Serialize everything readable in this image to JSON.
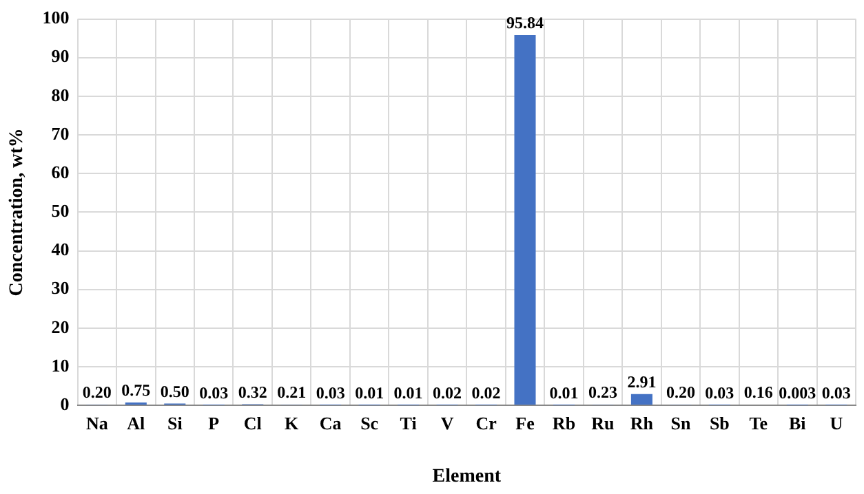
{
  "chart_data": {
    "type": "bar",
    "xlabel": "Element",
    "ylabel": "Concentration, wt%",
    "categories": [
      "Na",
      "Al",
      "Si",
      "P",
      "Cl",
      "K",
      "Ca",
      "Sc",
      "Ti",
      "V",
      "Cr",
      "Fe",
      "Rb",
      "Ru",
      "Rh",
      "Sn",
      "Sb",
      "Te",
      "Bi",
      "U"
    ],
    "values": [
      0.2,
      0.75,
      0.5,
      0.03,
      0.32,
      0.21,
      0.03,
      0.01,
      0.01,
      0.02,
      0.02,
      95.84,
      0.01,
      0.23,
      2.91,
      0.2,
      0.03,
      0.16,
      0.003,
      0.03
    ],
    "value_labels": [
      "0.20",
      "0.75",
      "0.50",
      "0.03",
      "0.32",
      "0.21",
      "0.03",
      "0.01",
      "0.01",
      "0.02",
      "0.02",
      "95.84",
      "0.01",
      "0.23",
      "2.91",
      "0.20",
      "0.03",
      "0.16",
      "0.003",
      "0.03"
    ],
    "color": "#4472c4",
    "ylim": [
      0,
      100
    ],
    "yticks": [
      0,
      10,
      20,
      30,
      40,
      50,
      60,
      70,
      80,
      90,
      100
    ],
    "grid": true,
    "legend": false
  }
}
